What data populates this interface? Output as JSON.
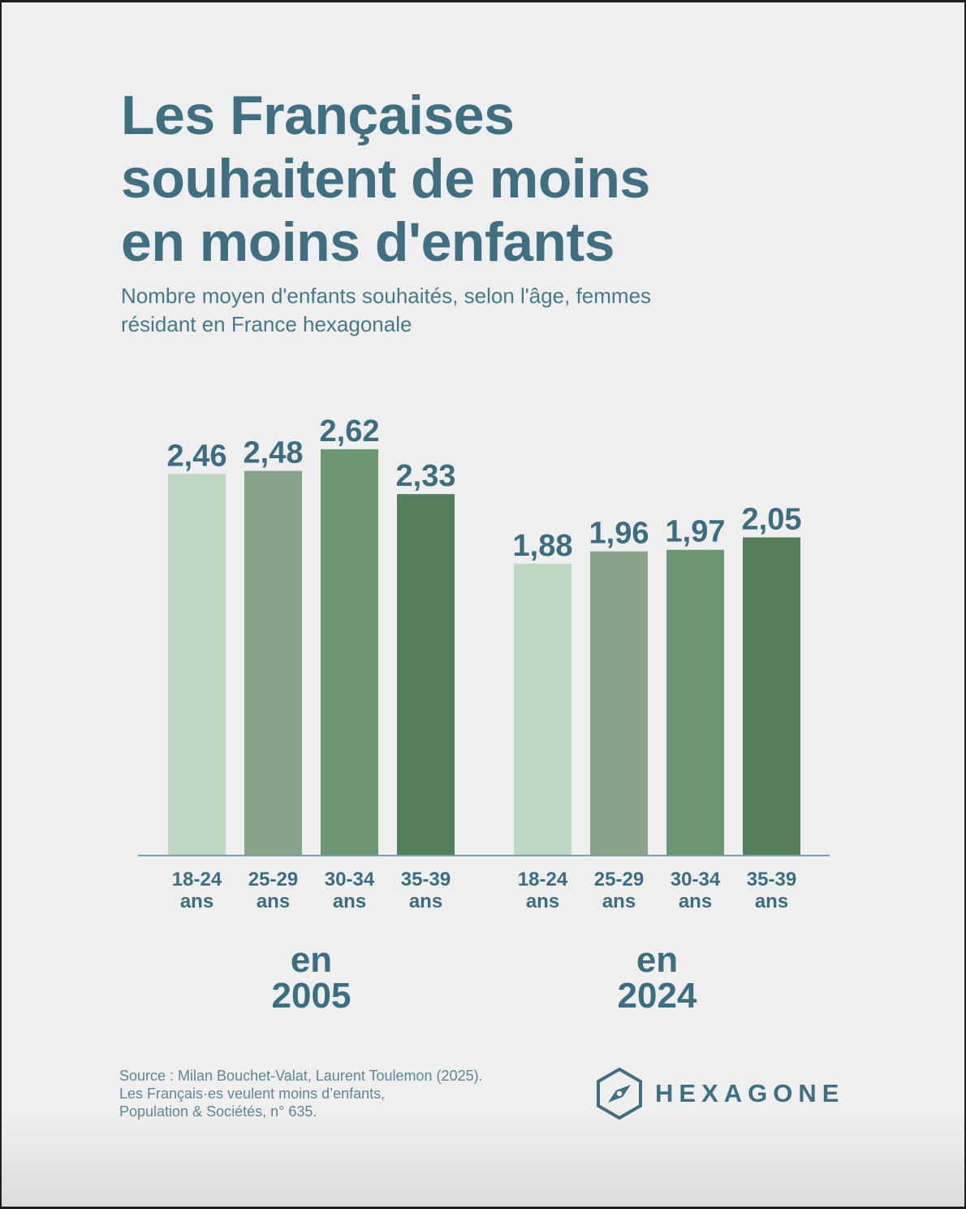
{
  "header": {
    "title_lines": [
      "Les Françaises",
      "souhaitent de moins",
      "en moins d'enfants"
    ],
    "subtitle_lines": [
      "Nombre moyen d'enfants souhaités, selon l'âge, femmes",
      "résidant en France hexagonale"
    ]
  },
  "colors": {
    "text": "#3f6f80",
    "baseline": "#7fa2b0",
    "bar_shades": [
      "#bfd6c1",
      "#88a387",
      "#6c9674",
      "#547e5c"
    ]
  },
  "chart_data": {
    "type": "bar",
    "title": "Les Françaises souhaitent de moins en moins d'enfants",
    "subtitle": "Nombre moyen d'enfants souhaités, selon l'âge, femmes résidant en France hexagonale",
    "xlabel": "",
    "ylabel": "",
    "ylim": [
      0,
      2.62
    ],
    "grid": false,
    "legend": "none",
    "categories": [
      "18-24 ans",
      "25-29 ans",
      "30-34 ans",
      "35-39 ans"
    ],
    "category_lines": [
      [
        "18-24",
        "ans"
      ],
      [
        "25-29",
        "ans"
      ],
      [
        "30-34",
        "ans"
      ],
      [
        "35-39",
        "ans"
      ]
    ],
    "groups": [
      {
        "name": "2005",
        "label_lines": [
          "en",
          "2005"
        ],
        "values": [
          2.46,
          2.48,
          2.62,
          2.33
        ],
        "value_labels": [
          "2,46",
          "2,48",
          "2,62",
          "2,33"
        ]
      },
      {
        "name": "2024",
        "label_lines": [
          "en",
          "2024"
        ],
        "values": [
          1.88,
          1.96,
          1.97,
          2.05
        ],
        "value_labels": [
          "1,88",
          "1,96",
          "1,97",
          "2,05"
        ]
      }
    ]
  },
  "footer": {
    "source_lines": [
      "Source : Milan Bouchet-Valat, Laurent Toulemon (2025).",
      "Les Français·es veulent moins d’enfants,",
      "Population & Sociétés, n° 635."
    ],
    "logo_text": "HEXAGONE",
    "logo_icon": "hexagon-compass-icon"
  }
}
